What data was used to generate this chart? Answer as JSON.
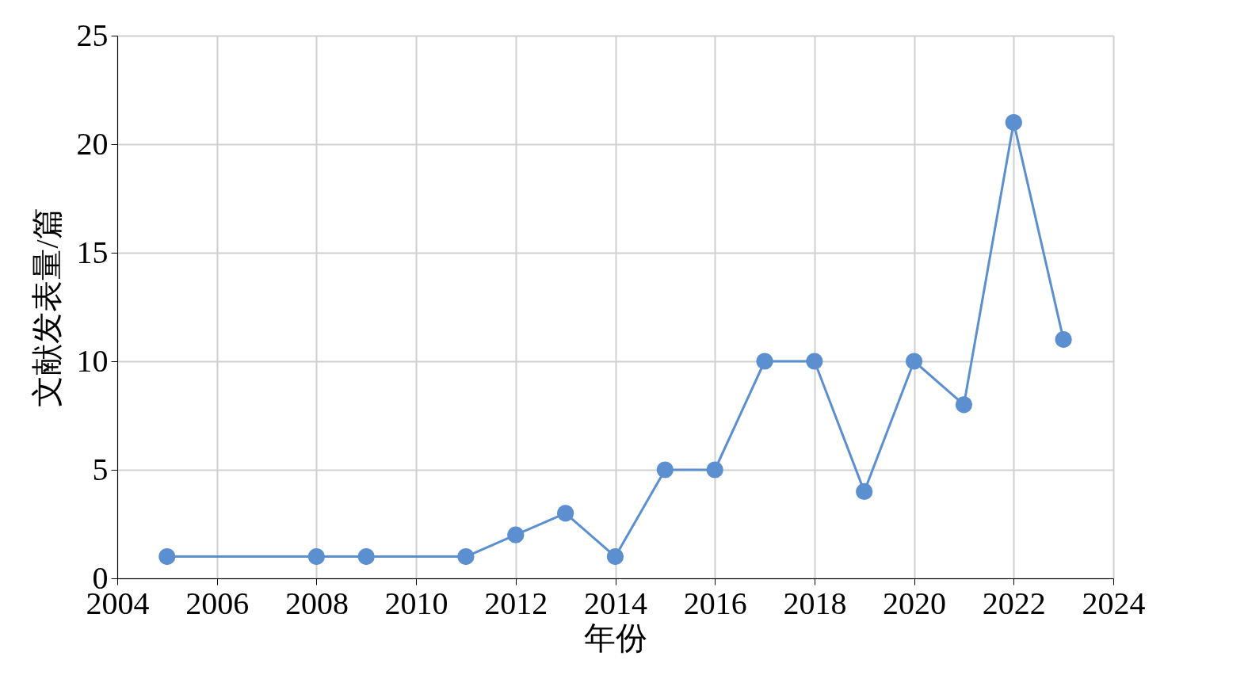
{
  "chart_data": {
    "type": "line",
    "xlabel": "年份",
    "ylabel": "文献发表量/篇",
    "x": [
      2005,
      2008,
      2009,
      2011,
      2012,
      2013,
      2014,
      2015,
      2016,
      2017,
      2018,
      2019,
      2020,
      2021,
      2022,
      2023
    ],
    "series": [
      {
        "color": "#5b8fcf",
        "values": [
          1,
          1,
          1,
          1,
          2,
          3,
          1,
          5,
          5,
          10,
          10,
          4,
          10,
          8,
          21,
          11
        ]
      }
    ],
    "xlim": [
      2004,
      2024
    ],
    "xticks": [
      2004,
      2006,
      2008,
      2010,
      2012,
      2014,
      2016,
      2018,
      2020,
      2022,
      2024
    ],
    "ylim": [
      0,
      25
    ],
    "yticks": [
      0,
      5,
      10,
      15,
      20,
      25
    ],
    "grid": true,
    "marker": "circle",
    "line_style": "solid"
  }
}
